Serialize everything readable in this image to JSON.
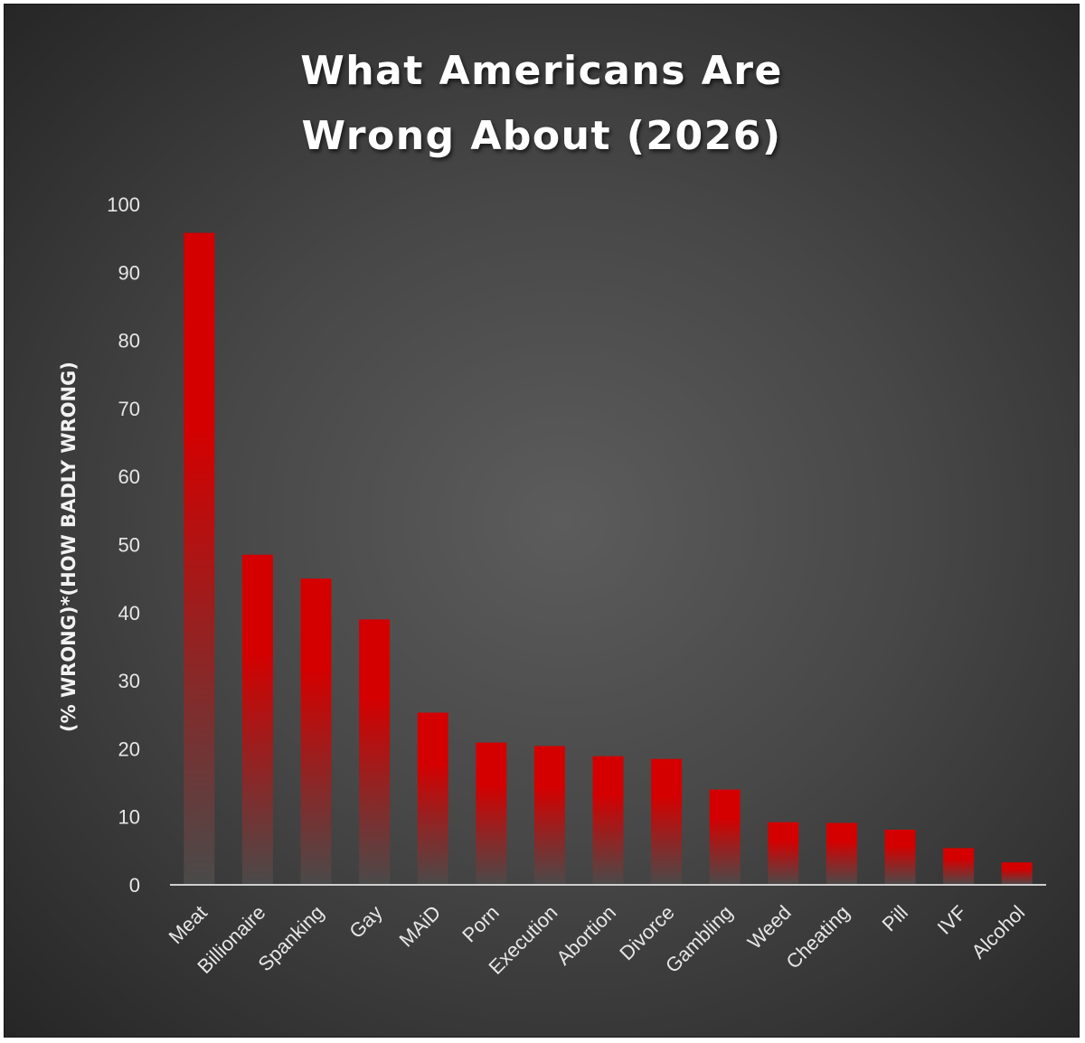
{
  "chart_data": {
    "type": "bar",
    "title_lines": [
      "What Americans Are",
      "Wrong About (2026)"
    ],
    "xlabel": "",
    "ylabel": "(% WRONG)*(HOW BADLY WRONG)",
    "ylim": [
      0,
      100
    ],
    "yticks": [
      0,
      10,
      20,
      30,
      40,
      50,
      60,
      70,
      80,
      90,
      100
    ],
    "grid": false,
    "legend": "none",
    "categories": [
      "Meat",
      "Billionaire",
      "Spanking",
      "Gay",
      "MAiD",
      "Porn",
      "Execution",
      "Abortion",
      "Divorce",
      "Gambling",
      "Weed",
      "Cheating",
      "Pill",
      "IVF",
      "Alcohol"
    ],
    "values": [
      95.8,
      48.5,
      45.0,
      39.0,
      25.3,
      20.9,
      20.4,
      18.9,
      18.5,
      14.0,
      9.2,
      9.1,
      8.1,
      5.4,
      3.3
    ],
    "bar_color_top": "#d40000",
    "bar_color_bottom": "#4a4a4a"
  }
}
